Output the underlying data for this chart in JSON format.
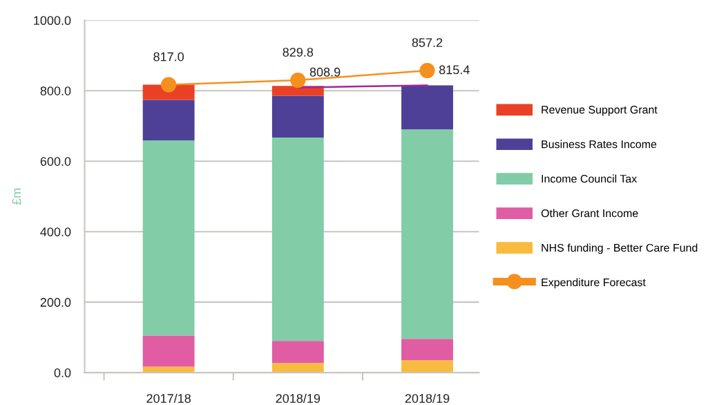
{
  "chart_data": {
    "type": "bar",
    "stacked": true,
    "ylabel": "£m",
    "categories": [
      "2017/18",
      "2018/19",
      "2018/19"
    ],
    "ylim": [
      0,
      1000
    ],
    "yticks": [
      {
        "value": 0,
        "label": "0.0"
      },
      {
        "value": 200,
        "label": "200.0"
      },
      {
        "value": 400,
        "label": "400.0"
      },
      {
        "value": 600,
        "label": "600.0"
      },
      {
        "value": 800,
        "label": "800.0"
      },
      {
        "value": 1000,
        "label": "1000.0"
      }
    ],
    "grid": "y",
    "legend": "right",
    "series": [
      {
        "name": "NHS funding - Better Care Fund",
        "color": "#f9bb3e",
        "values": [
          17,
          27,
          35
        ]
      },
      {
        "name": "Other Grant Income",
        "color": "#e05ca3",
        "values": [
          88,
          63,
          61
        ]
      },
      {
        "name": "Income Council Tax",
        "color": "#82cca8",
        "values": [
          554,
          577,
          594
        ]
      },
      {
        "name": "Business Rates Income",
        "color": "#4f4097",
        "values": [
          115,
          119,
          125
        ]
      },
      {
        "name": "Revenue Support Grant",
        "color": "#ea4126",
        "values": [
          43,
          28,
          0
        ]
      },
      {
        "type": "line",
        "color": "#a0279a",
        "marker": "none",
        "values": [
          null,
          808.9,
          815.4
        ],
        "value_labels": [
          null,
          "808.9",
          "815.4"
        ]
      },
      {
        "type": "line",
        "name": "Expenditure Forecast",
        "color": "#f5901e",
        "marker": "circle",
        "values": [
          817.0,
          829.8,
          857.2
        ],
        "value_labels": [
          "817.0",
          "829.8",
          "857.2"
        ]
      }
    ]
  }
}
